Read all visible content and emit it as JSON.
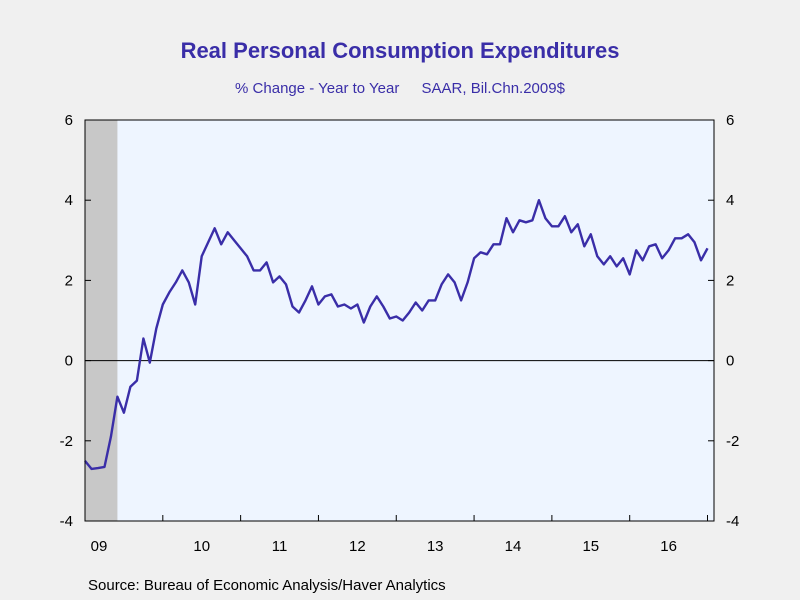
{
  "source": "Source:  Bureau of Economic Analysis/Haver Analytics",
  "colors": {
    "line": "#3a2ea8",
    "plot_background": "#eef5ff",
    "recession_shading": "#c8c8c8",
    "page_background": "#f0f0f0",
    "title": "#3a2ea8"
  },
  "chart_data": {
    "type": "line",
    "title": "Real Personal Consumption Expenditures",
    "subtitle_left": "% Change - Year to Year",
    "subtitle_right": "SAAR, Bil.Chn.2009$",
    "xlabel": "",
    "ylabel": "",
    "ylim": [
      -4,
      6
    ],
    "yticks": [
      -4,
      -2,
      0,
      2,
      4,
      6
    ],
    "xlim": [
      "2009-01",
      "2017-02"
    ],
    "x_tick_labels": [
      "09",
      "10",
      "11",
      "12",
      "13",
      "14",
      "15",
      "16"
    ],
    "recession": {
      "start": "2009-01",
      "end": "2009-06"
    },
    "zero_line": true,
    "grid": false,
    "series": [
      {
        "name": "",
        "x": [
          "2009-01",
          "2009-02",
          "2009-03",
          "2009-04",
          "2009-05",
          "2009-06",
          "2009-07",
          "2009-08",
          "2009-09",
          "2009-10",
          "2009-11",
          "2009-12",
          "2010-01",
          "2010-02",
          "2010-03",
          "2010-04",
          "2010-05",
          "2010-06",
          "2010-07",
          "2010-08",
          "2010-09",
          "2010-10",
          "2010-11",
          "2010-12",
          "2011-01",
          "2011-02",
          "2011-03",
          "2011-04",
          "2011-05",
          "2011-06",
          "2011-07",
          "2011-08",
          "2011-09",
          "2011-10",
          "2011-11",
          "2011-12",
          "2012-01",
          "2012-02",
          "2012-03",
          "2012-04",
          "2012-05",
          "2012-06",
          "2012-07",
          "2012-08",
          "2012-09",
          "2012-10",
          "2012-11",
          "2012-12",
          "2013-01",
          "2013-02",
          "2013-03",
          "2013-04",
          "2013-05",
          "2013-06",
          "2013-07",
          "2013-08",
          "2013-09",
          "2013-10",
          "2013-11",
          "2013-12",
          "2014-01",
          "2014-02",
          "2014-03",
          "2014-04",
          "2014-05",
          "2014-06",
          "2014-07",
          "2014-08",
          "2014-09",
          "2014-10",
          "2014-11",
          "2014-12",
          "2015-01",
          "2015-02",
          "2015-03",
          "2015-04",
          "2015-05",
          "2015-06",
          "2015-07",
          "2015-08",
          "2015-09",
          "2015-10",
          "2015-11",
          "2015-12",
          "2016-01",
          "2016-02",
          "2016-03",
          "2016-04",
          "2016-05",
          "2016-06",
          "2016-07",
          "2016-08",
          "2016-09",
          "2016-10",
          "2016-11",
          "2016-12",
          "2017-01"
        ],
        "values": [
          -2.5,
          -2.7,
          -2.68,
          -2.65,
          -1.9,
          -0.9,
          -1.3,
          -0.65,
          -0.5,
          0.55,
          -0.05,
          0.8,
          1.4,
          1.7,
          1.95,
          2.25,
          1.95,
          1.4,
          2.6,
          2.95,
          3.3,
          2.9,
          3.2,
          3.0,
          2.8,
          2.6,
          2.25,
          2.25,
          2.45,
          1.95,
          2.1,
          1.9,
          1.35,
          1.2,
          1.5,
          1.85,
          1.4,
          1.6,
          1.65,
          1.35,
          1.4,
          1.3,
          1.4,
          0.95,
          1.35,
          1.6,
          1.35,
          1.05,
          1.1,
          1.0,
          1.2,
          1.45,
          1.25,
          1.5,
          1.5,
          1.9,
          2.15,
          1.95,
          1.5,
          1.95,
          2.55,
          2.7,
          2.65,
          2.9,
          2.9,
          3.55,
          3.2,
          3.5,
          3.45,
          3.5,
          4.0,
          3.55,
          3.35,
          3.35,
          3.6,
          3.2,
          3.4,
          2.85,
          3.15,
          2.6,
          2.4,
          2.6,
          2.35,
          2.55,
          2.15,
          2.75,
          2.5,
          2.85,
          2.9,
          2.55,
          2.75,
          3.05,
          3.05,
          3.15,
          2.95,
          2.5,
          2.8
        ]
      }
    ]
  }
}
